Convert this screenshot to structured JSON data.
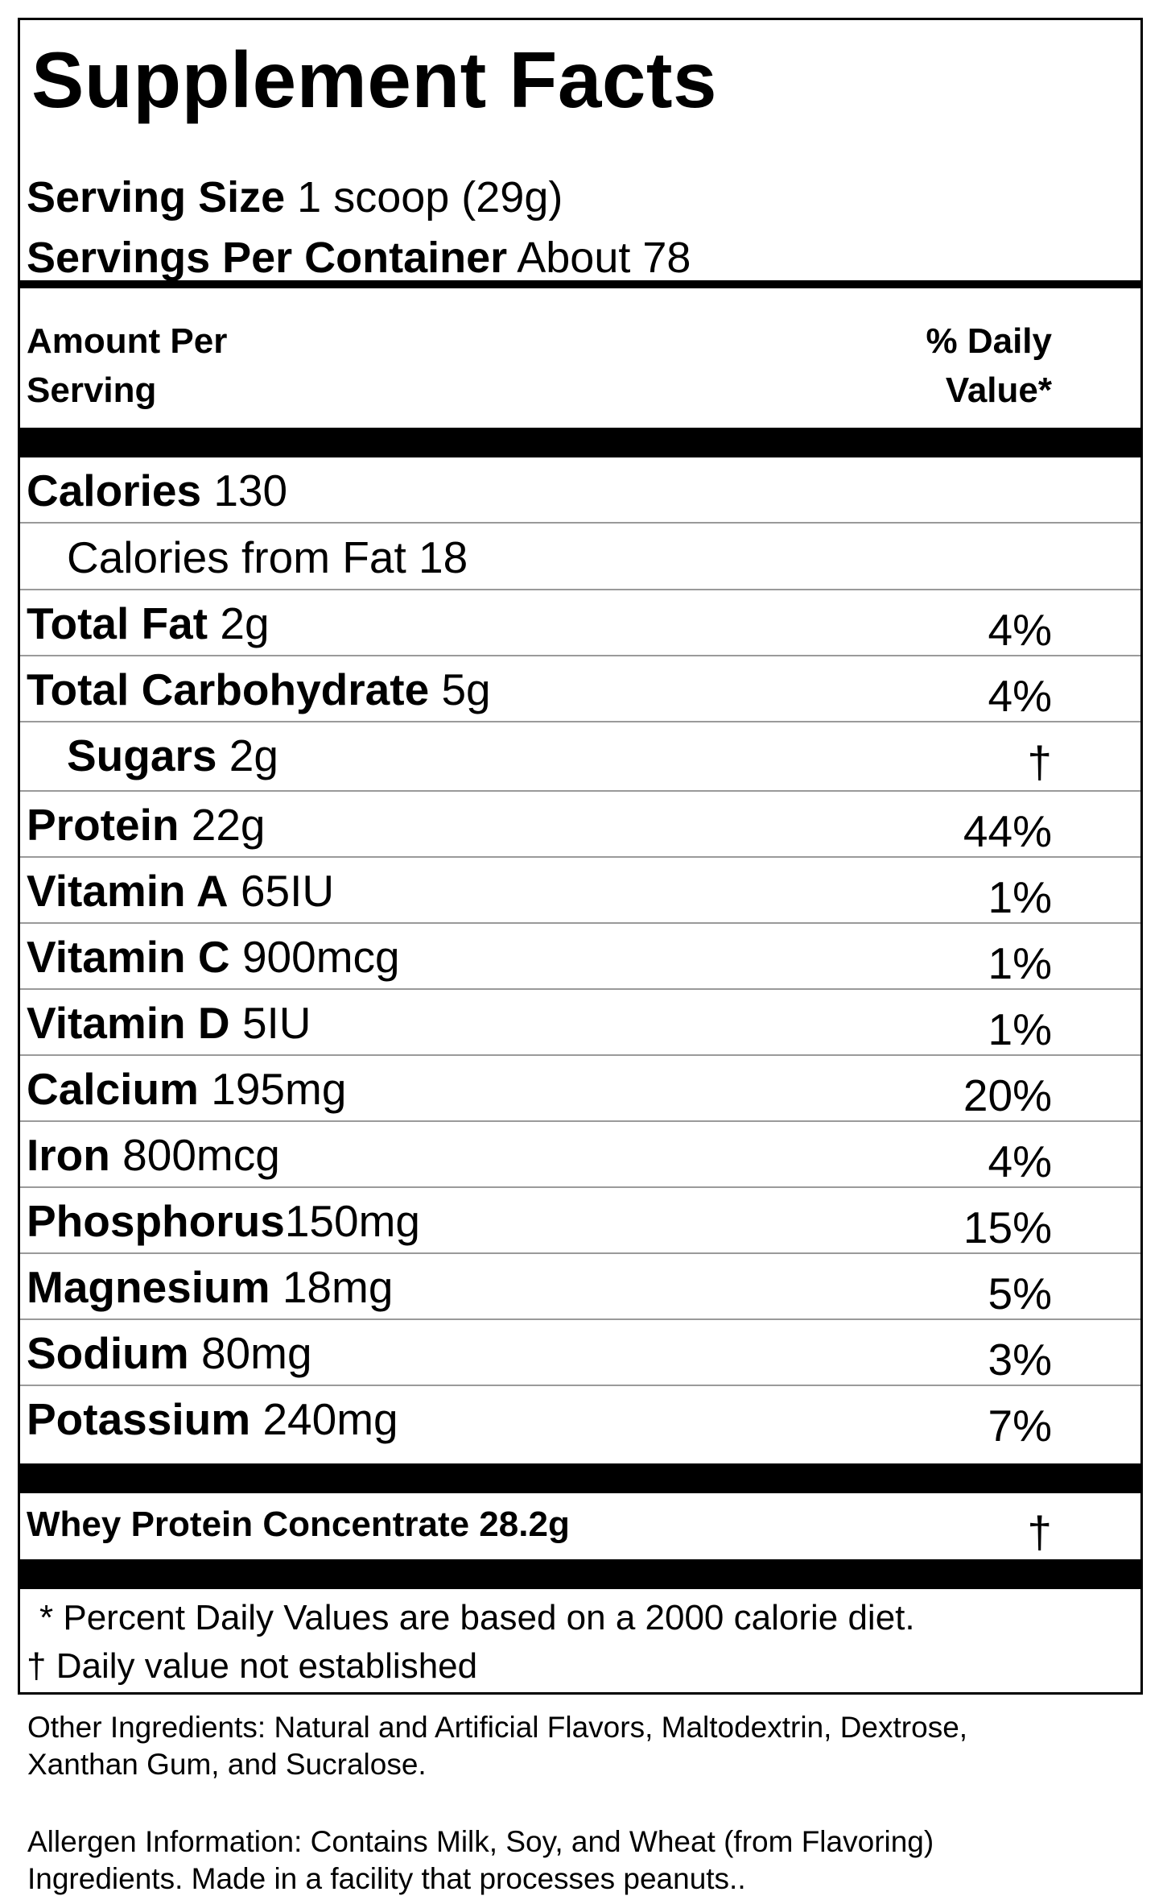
{
  "title": "Supplement Facts",
  "serving": {
    "size_label": "Serving Size",
    "size_value": "1 scoop (29g)",
    "per_container_label": "Servings Per Container",
    "per_container_value": "About 78"
  },
  "header": {
    "amount_line1": "Amount Per",
    "amount_line2": "Serving",
    "dv_line1": "% Daily",
    "dv_line2": "Value*"
  },
  "rows": [
    {
      "name": "Calories",
      "amount": "130",
      "dv": ""
    },
    {
      "name": "",
      "amount": "Calories from Fat 18",
      "dv": ""
    },
    {
      "name": "Total Fat",
      "amount": "2g",
      "dv": "4%"
    },
    {
      "name": "Total Carbohydrate",
      "amount": "5g",
      "dv": "4%"
    },
    {
      "name": "Sugars",
      "amount": "2g",
      "dv": "†"
    },
    {
      "name": "Protein",
      "amount": "22g",
      "dv": "44%"
    },
    {
      "name": "Vitamin A",
      "amount": "65IU",
      "dv": "1%"
    },
    {
      "name": "Vitamin C",
      "amount": "900mcg",
      "dv": "1%"
    },
    {
      "name": "Vitamin D",
      "amount": "5IU",
      "dv": "1%"
    },
    {
      "name": "Calcium",
      "amount": "195mg",
      "dv": "20%"
    },
    {
      "name": "Iron",
      "amount": "800mcg",
      "dv": "4%"
    },
    {
      "name": "Phosphorus",
      "amount": "150mg",
      "dv": "15%"
    },
    {
      "name": "Magnesium",
      "amount": "18mg",
      "dv": "5%"
    },
    {
      "name": "Sodium",
      "amount": "80mg",
      "dv": "3%"
    },
    {
      "name": "Potassium",
      "amount": "240mg",
      "dv": "7%"
    }
  ],
  "blend": {
    "name": "Whey Protein Concentrate 28.2g",
    "dv": "†"
  },
  "footnotes": {
    "percent": "* Percent Daily Values are based on a 2000 calorie diet.",
    "dagger": "† Daily value not established"
  },
  "other_ingredients": "Other Ingredients: Natural and Artificial Flavors, Maltodextrin, Dextrose, Xanthan Gum, and Sucralose.",
  "allergen": "Allergen Information: Contains Milk, Soy, and Wheat (from Flavoring) Ingredients. Made in a facility that processes peanuts.."
}
